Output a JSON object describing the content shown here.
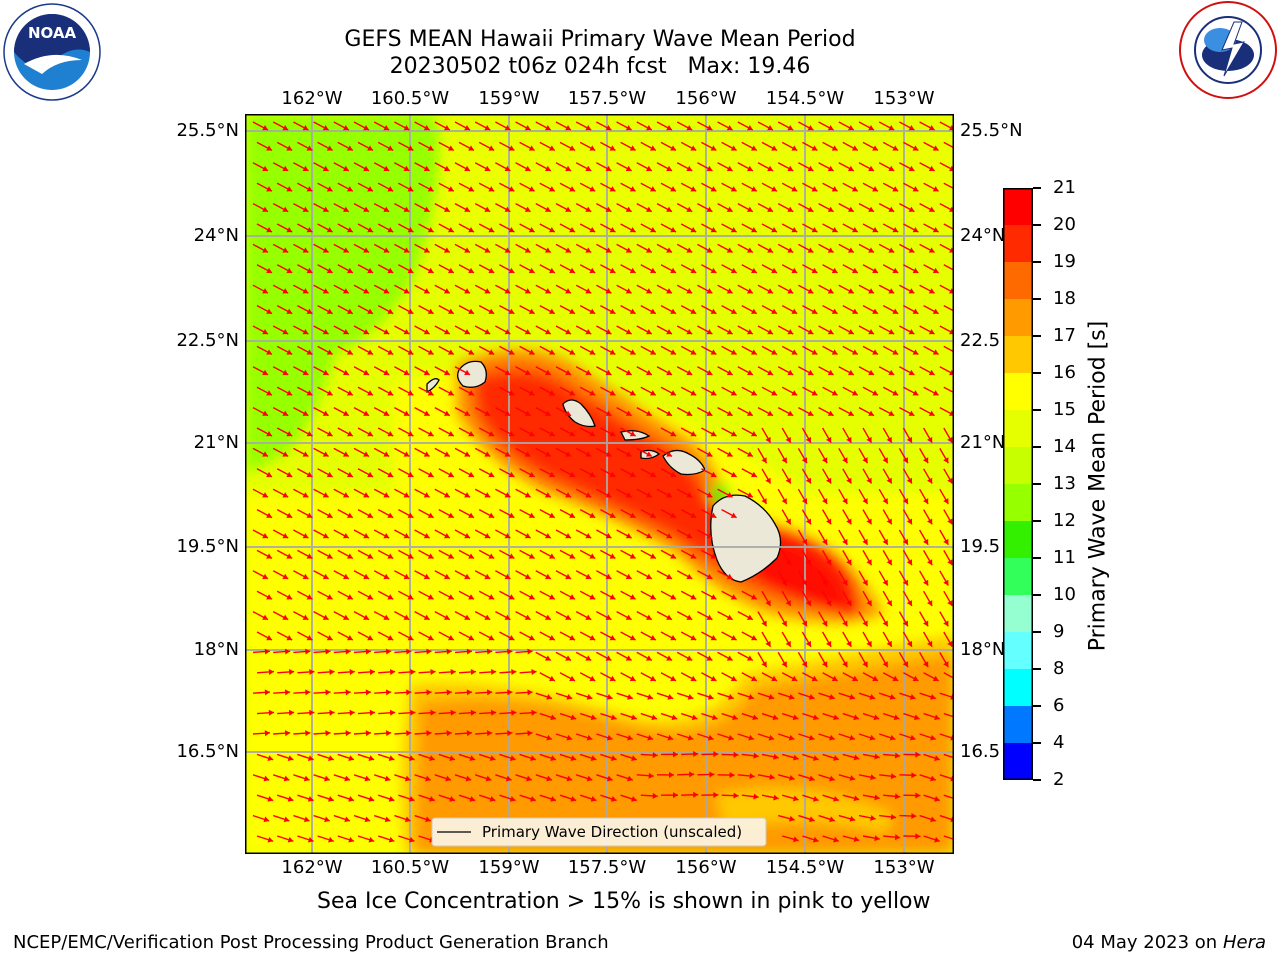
{
  "header": {
    "title_line1": "GEFS MEAN Hawaii Primary Wave Mean Period",
    "title_line2": "20230502 t06z 024h fcst   Max: 19.46",
    "noaa_logo_text": "NOAA",
    "noaa_logo_ring": "NATIONAL OCEANIC AND ATMOSPHERIC ADMINISTRATION · U.S. DEPARTMENT OF COMMERCE",
    "nws_logo_ring": "NATIONAL WEATHER SERVICE"
  },
  "map": {
    "lon_labels": [
      "162°W",
      "160.5°W",
      "159°W",
      "157.5°W",
      "156°W",
      "154.5°W",
      "153°W"
    ],
    "lat_labels_left": [
      "25.5°N",
      "24°N",
      "22.5°N",
      "21°N",
      "19.5°N",
      "18°N",
      "16.5°N"
    ],
    "lat_labels_right": [
      "25.5°N",
      "24°N",
      "22.5",
      "21°N",
      "19.5",
      "18°N",
      "16.5"
    ],
    "legend_label": "Primary Wave Direction (unscaled)",
    "arrow_color": "#ff0000"
  },
  "colorbar": {
    "label": "Primary Wave Mean Period [s]",
    "ticks": [
      "21",
      "20",
      "19",
      "18",
      "17",
      "16",
      "15",
      "14",
      "13",
      "12",
      "11",
      "10",
      "9",
      "8",
      "6",
      "4",
      "2"
    ],
    "colors_top_to_bottom": [
      "#ff0000",
      "#ff2a00",
      "#ff6a00",
      "#ff9a00",
      "#ffc800",
      "#ffff00",
      "#e6ff00",
      "#c8ff00",
      "#96ff00",
      "#32f000",
      "#32ff5a",
      "#96ffd2",
      "#64ffff",
      "#00ffff",
      "#0078ff",
      "#0000ff"
    ]
  },
  "footer": {
    "note": "Sea Ice Concentration > 15% is shown in pink to yellow",
    "credit": "NCEP/EMC/Verification Post Processing Product Generation Branch",
    "date": "04 May 2023 on",
    "machine": "Hera"
  }
}
